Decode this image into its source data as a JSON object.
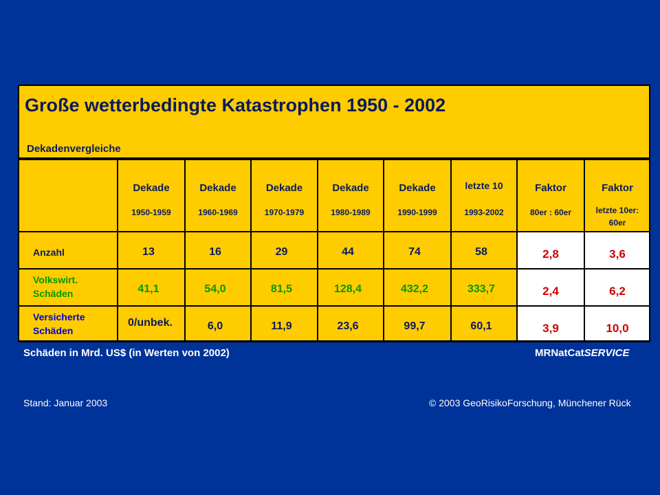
{
  "title": "Große wetterbedingte Katastrophen 1950 - 2002",
  "subtitle": "Dekadenvergleiche",
  "columns": [
    {
      "label": "Dekade",
      "years": "1950-1959"
    },
    {
      "label": "Dekade",
      "years": "1960-1969"
    },
    {
      "label": "Dekade",
      "years": "1970-1979"
    },
    {
      "label": "Dekade",
      "years": "1980-1989"
    },
    {
      "label": "Dekade",
      "years": "1990-1999"
    },
    {
      "label": "letzte 10",
      "years": "1993-2002"
    }
  ],
  "factor_columns": [
    {
      "label": "Faktor",
      "sub": "80er : 60er"
    },
    {
      "label": "Faktor",
      "sub": "letzte 10er:",
      "sub2": "60er"
    }
  ],
  "rows": [
    {
      "label_line1": "Anzahl",
      "label_line2": "",
      "values": [
        "13",
        "16",
        "29",
        "44",
        "74",
        "58"
      ],
      "factors": [
        "2,8",
        "3,6"
      ]
    },
    {
      "label_line1": "Volkswirt.",
      "label_line2": "Schäden",
      "values": [
        "41,1",
        "54,0",
        "81,5",
        "128,4",
        "432,2",
        "333,7"
      ],
      "factors": [
        "2,4",
        "6,2"
      ]
    },
    {
      "label_line1": "Versicherte",
      "label_line2": "Schäden",
      "values": [
        "0/unbek.",
        "6,0",
        "11,9",
        "23,6",
        "99,7",
        "60,1"
      ],
      "factors": [
        "3,9",
        "10,0"
      ]
    }
  ],
  "note": "Schäden in Mrd. US$ (in Werten von 2002)",
  "brand_prefix": "MRNatCat",
  "brand_suffix": "SERVICE",
  "stand": "Stand: Januar 2003",
  "copyright": "© 2003 GeoRisikoForschung, Münchener Rück",
  "colors": {
    "background": "#003399",
    "header": "#FFCC00",
    "factor": "#cc0000",
    "green": "#009900"
  }
}
